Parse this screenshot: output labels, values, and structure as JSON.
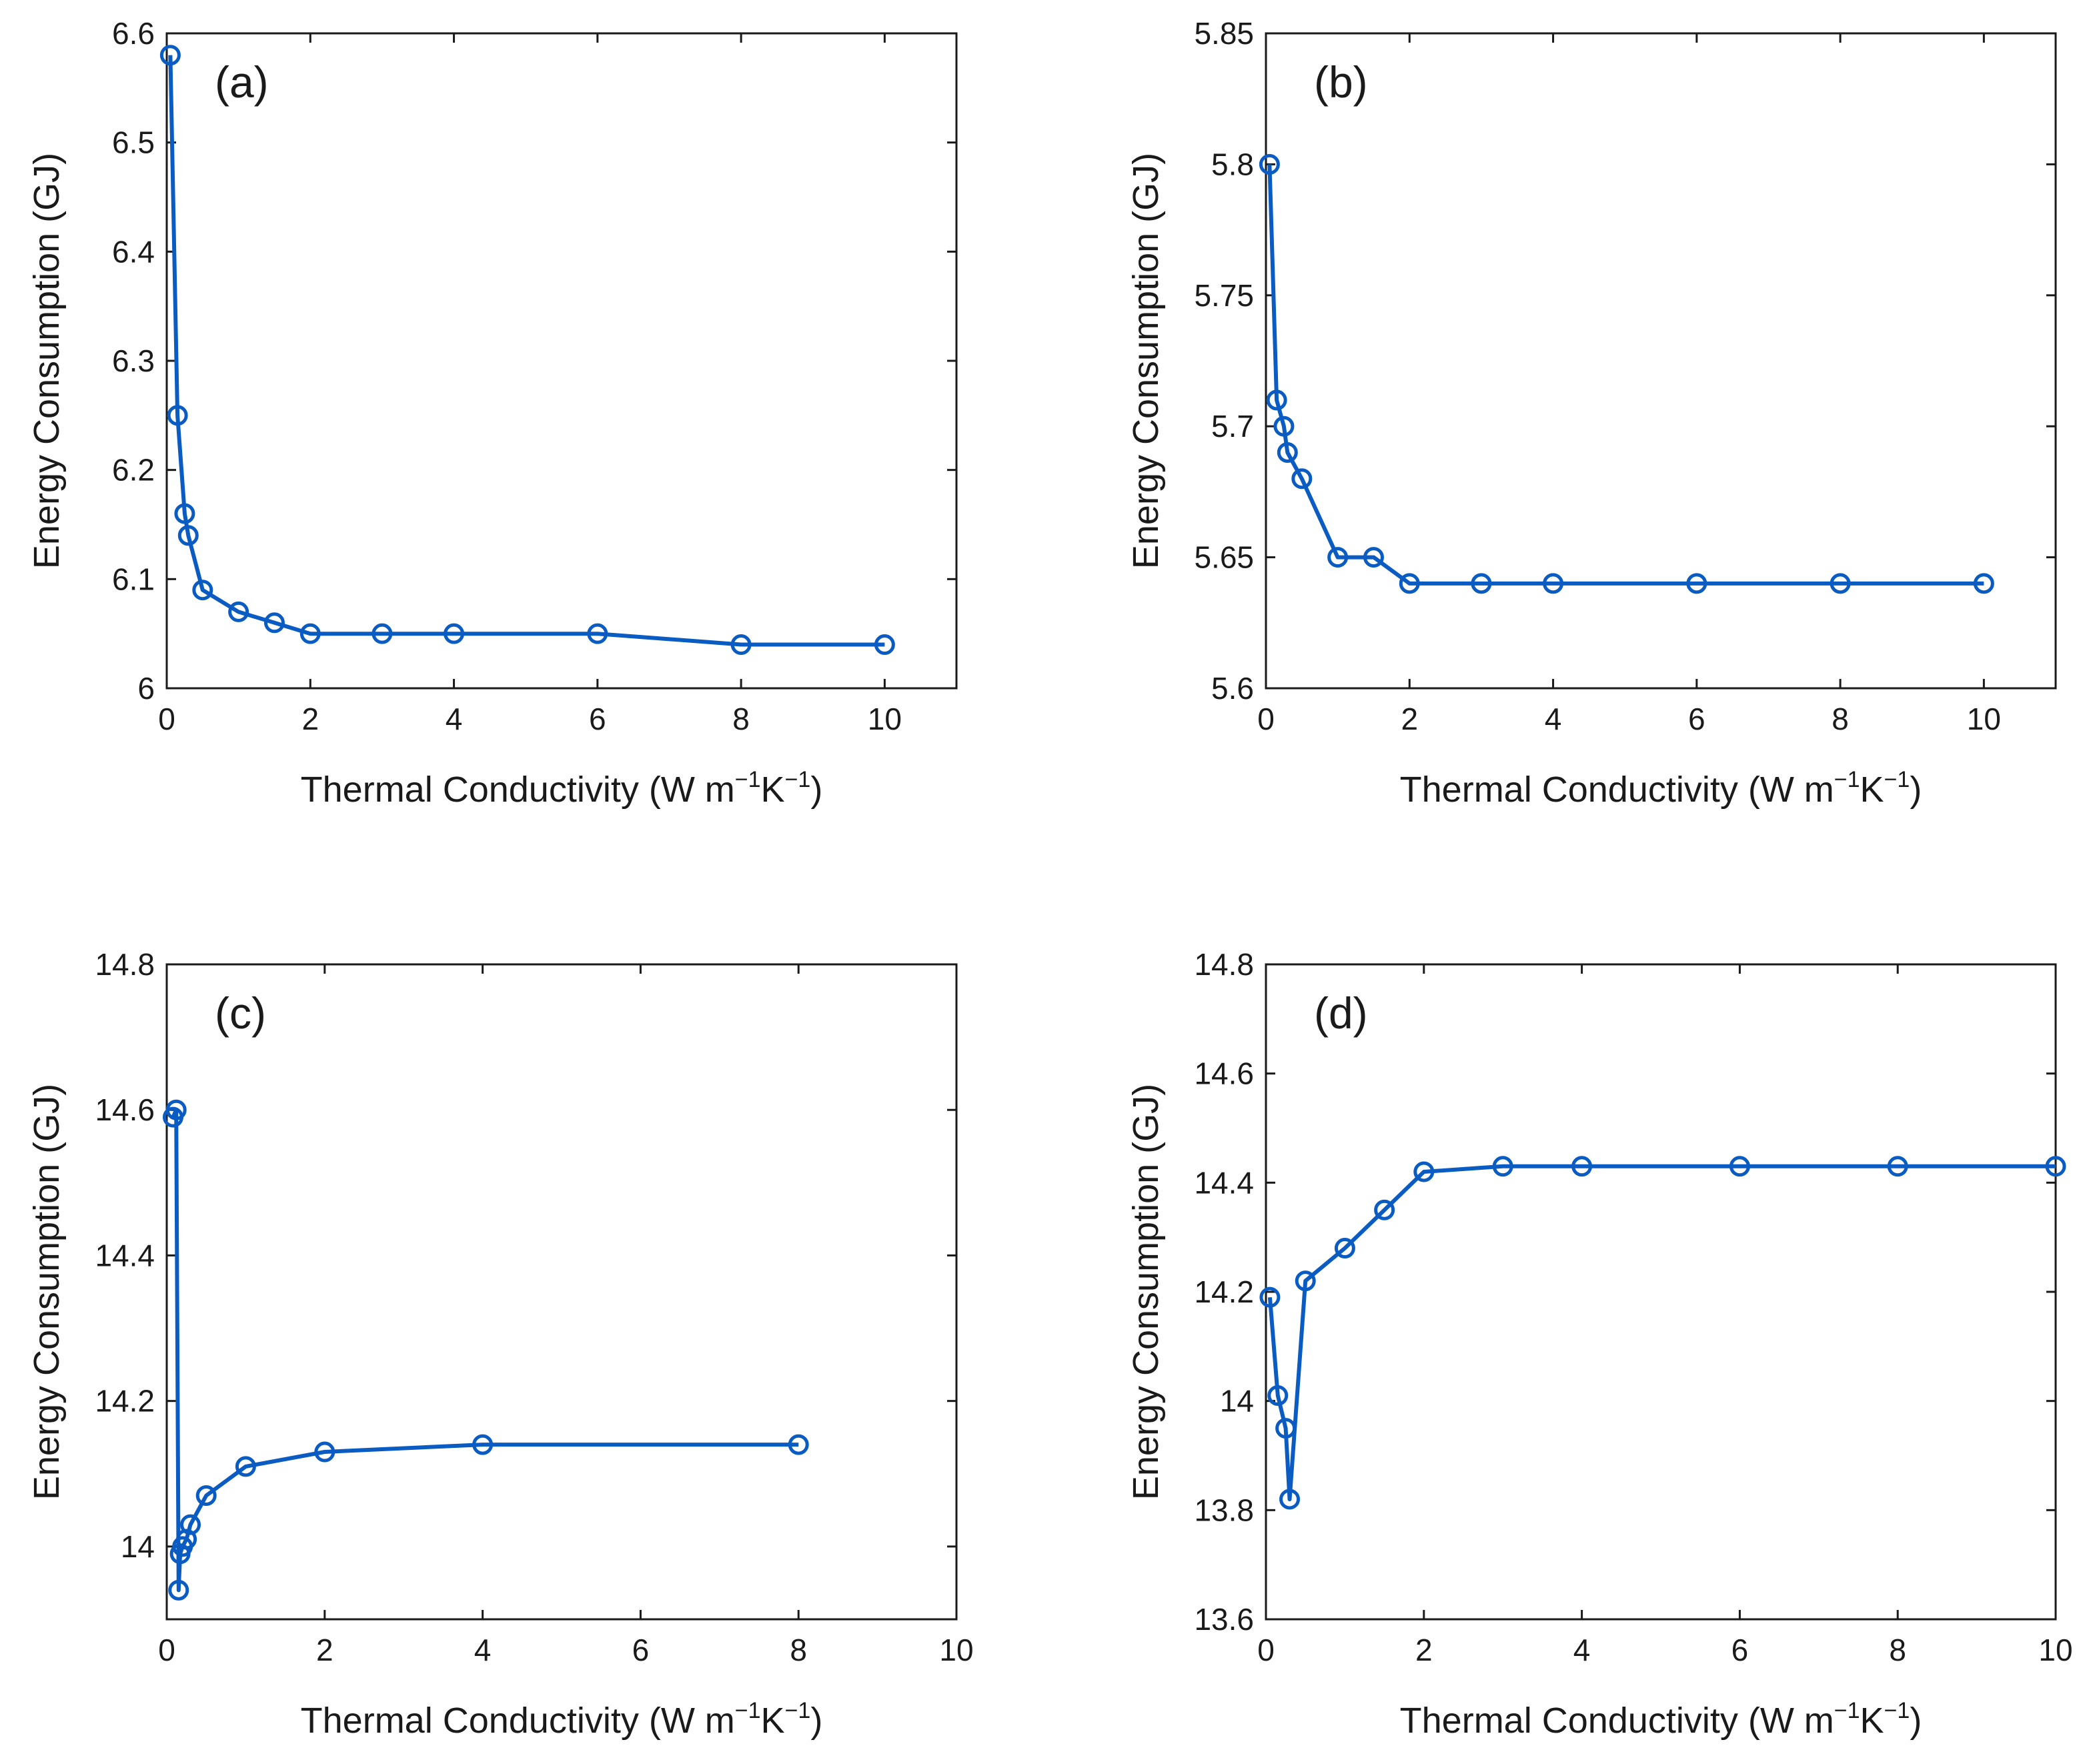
{
  "series_color": "#0a5cc2",
  "chart_data": [
    {
      "type": "line",
      "panel_label": "(a)",
      "xlabel": "Thermal Conductivity (W m",
      "xlabel_exp1": "−1",
      "xlabel_mid": "K",
      "xlabel_exp2": "−1",
      "xlabel_end": ")",
      "ylabel": "Energy Consumption (GJ)",
      "xlim": [
        0,
        11
      ],
      "ylim": [
        6.0,
        6.6
      ],
      "xticks": [
        0,
        2,
        4,
        6,
        8,
        10
      ],
      "xtick_labels": [
        "0",
        "2",
        "4",
        "6",
        "8",
        "10"
      ],
      "yticks": [
        6.0,
        6.1,
        6.2,
        6.3,
        6.4,
        6.5,
        6.6
      ],
      "ytick_labels": [
        "6",
        "6.1",
        "6.2",
        "6.3",
        "6.4",
        "6.5",
        "6.6"
      ],
      "x": [
        0.05,
        0.15,
        0.25,
        0.3,
        0.5,
        1,
        1.5,
        2,
        3,
        4,
        6,
        8,
        10
      ],
      "y": [
        6.58,
        6.25,
        6.16,
        6.14,
        6.09,
        6.07,
        6.06,
        6.05,
        6.05,
        6.05,
        6.05,
        6.04,
        6.04
      ]
    },
    {
      "type": "line",
      "panel_label": "(b)",
      "xlabel": "Thermal Conductivity (W m",
      "xlabel_exp1": "−1",
      "xlabel_mid": "K",
      "xlabel_exp2": "−1",
      "xlabel_end": ")",
      "ylabel": "Energy Consumption (GJ)",
      "xlim": [
        0,
        11
      ],
      "ylim": [
        5.6,
        5.85
      ],
      "xticks": [
        0,
        2,
        4,
        6,
        8,
        10
      ],
      "xtick_labels": [
        "0",
        "2",
        "4",
        "6",
        "8",
        "10"
      ],
      "yticks": [
        5.6,
        5.65,
        5.7,
        5.75,
        5.8,
        5.85
      ],
      "ytick_labels": [
        "5.6",
        "5.65",
        "5.7",
        "5.75",
        "5.8",
        "5.85"
      ],
      "x": [
        0.05,
        0.15,
        0.25,
        0.3,
        0.5,
        1,
        1.5,
        2,
        3,
        4,
        6,
        8,
        10
      ],
      "y": [
        5.8,
        5.71,
        5.7,
        5.69,
        5.68,
        5.65,
        5.65,
        5.64,
        5.64,
        5.64,
        5.64,
        5.64,
        5.64
      ]
    },
    {
      "type": "line",
      "panel_label": "(c)",
      "xlabel": "Thermal Conductivity (W m",
      "xlabel_exp1": "−1",
      "xlabel_mid": "K",
      "xlabel_exp2": "−1",
      "xlabel_end": ")",
      "ylabel": "Energy Consumption (GJ)",
      "xlim": [
        0,
        10
      ],
      "ylim": [
        13.9,
        14.8
      ],
      "xticks": [
        0,
        2,
        4,
        6,
        8,
        10
      ],
      "xtick_labels": [
        "0",
        "2",
        "4",
        "6",
        "8",
        "10"
      ],
      "yticks": [
        14.0,
        14.2,
        14.4,
        14.6,
        14.8
      ],
      "ytick_labels": [
        "14",
        "14.2",
        "14.4",
        "14.6",
        "14.8"
      ],
      "x": [
        0.08,
        0.12,
        0.15,
        0.17,
        0.2,
        0.25,
        0.3,
        0.5,
        1,
        2,
        4,
        8
      ],
      "y": [
        14.59,
        14.6,
        13.94,
        13.99,
        14.0,
        14.01,
        14.03,
        14.07,
        14.11,
        14.13,
        14.14,
        14.14
      ]
    },
    {
      "type": "line",
      "panel_label": "(d)",
      "xlabel": "Thermal Conductivity (W m",
      "xlabel_exp1": "−1",
      "xlabel_mid": "K",
      "xlabel_exp2": "−1",
      "xlabel_end": ")",
      "ylabel": "Energy Consumption (GJ)",
      "xlim": [
        0,
        10
      ],
      "ylim": [
        13.6,
        14.8
      ],
      "xticks": [
        0,
        2,
        4,
        6,
        8,
        10
      ],
      "xtick_labels": [
        "0",
        "2",
        "4",
        "6",
        "8",
        "10"
      ],
      "yticks": [
        13.6,
        13.8,
        14.0,
        14.2,
        14.4,
        14.6,
        14.8
      ],
      "ytick_labels": [
        "13.6",
        "13.8",
        "14",
        "14.2",
        "14.4",
        "14.6",
        "14.8"
      ],
      "x": [
        0.05,
        0.15,
        0.25,
        0.3,
        0.5,
        1,
        1.5,
        2,
        3,
        4,
        6,
        8,
        10
      ],
      "y": [
        14.19,
        14.01,
        13.95,
        13.82,
        14.22,
        14.28,
        14.35,
        14.42,
        14.43,
        14.43,
        14.43,
        14.43,
        14.43
      ]
    }
  ]
}
